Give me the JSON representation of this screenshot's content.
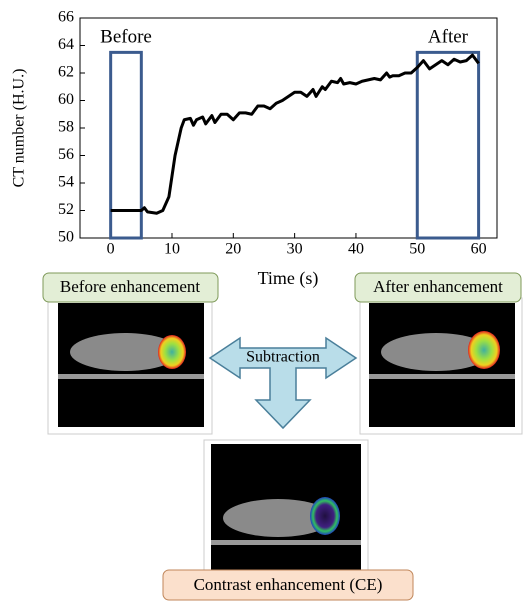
{
  "chart_data": {
    "type": "line",
    "x_label": "Time (s)",
    "y_label": "CT number (H.U.)",
    "x": [
      0,
      5,
      5.5,
      6,
      7.5,
      8.5,
      9.5,
      10.5,
      11.5,
      12,
      13,
      13.5,
      14,
      15,
      15.5,
      16.5,
      17,
      18,
      19,
      20,
      21,
      22,
      23,
      24,
      25,
      26,
      27,
      28,
      29,
      30,
      31,
      32,
      33,
      33.5,
      34.5,
      35,
      36,
      37,
      37.5,
      38,
      39,
      40,
      41,
      42,
      43,
      44,
      45,
      45.5,
      46,
      47,
      48,
      49,
      50,
      51,
      52,
      53,
      54,
      55,
      56,
      57,
      58,
      59,
      60
    ],
    "values": [
      52,
      52,
      52.2,
      51.9,
      51.8,
      52,
      53,
      56,
      58,
      58.6,
      58.7,
      58.2,
      58.6,
      58.8,
      58.3,
      58.9,
      58.4,
      59,
      59,
      58.6,
      59.1,
      59.1,
      59,
      59.6,
      59.6,
      59.4,
      59.8,
      60,
      60.3,
      60.6,
      60.6,
      60.3,
      60.8,
      60.3,
      61,
      60.8,
      61.4,
      61.3,
      61.6,
      61.2,
      61.3,
      61.2,
      61.4,
      61.5,
      61.6,
      61.5,
      62,
      61.7,
      61.8,
      61.8,
      62,
      62,
      62.4,
      62.9,
      62.3,
      62.6,
      62.9,
      62.6,
      63,
      62.8,
      62.9,
      63.3,
      62.7
    ],
    "color": "#000000",
    "xlim": [
      -5,
      63
    ],
    "ylim": [
      50,
      66
    ],
    "xticks": [
      0,
      10,
      20,
      30,
      40,
      50,
      60
    ],
    "yticks": [
      50,
      52,
      54,
      56,
      58,
      60,
      62,
      64,
      66
    ],
    "highlights": [
      {
        "label": "Before",
        "x": [
          0,
          5
        ],
        "y": [
          50,
          63.5
        ],
        "color": "#3b5b8e"
      },
      {
        "label": "After",
        "x": [
          50,
          60
        ],
        "y": [
          50,
          63.5
        ],
        "color": "#3b5b8e"
      }
    ]
  },
  "diagram": {
    "before_label": "Before enhancement",
    "after_label": "After enhancement",
    "operation": "Subtraction",
    "result_label": "Contrast enhancement (CE)"
  }
}
